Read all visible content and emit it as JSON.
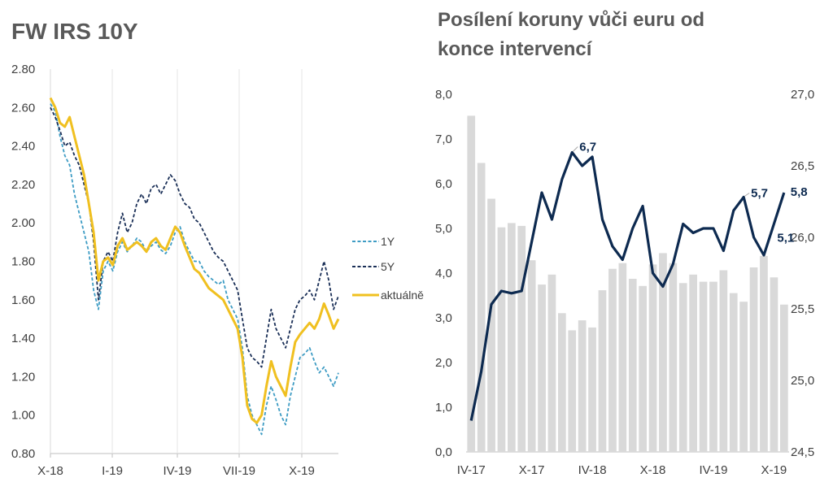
{
  "chart_data": [
    {
      "type": "line",
      "title": "FW IRS 10Y",
      "ylim": [
        0.8,
        2.8
      ],
      "ytick_labels": [
        "0.80",
        "1.00",
        "1.20",
        "1.40",
        "1.60",
        "1.80",
        "2.00",
        "2.20",
        "2.40",
        "2.60",
        "2.80"
      ],
      "x_tick_labels": [
        "X-18",
        "I-19",
        "IV-19",
        "VII-19",
        "X-19"
      ],
      "grid": "vertical-lines",
      "legend_position": "right",
      "series": [
        {
          "name": "1Y",
          "color": "#3e9cc4",
          "style": "dashed",
          "values": [
            2.62,
            2.58,
            2.45,
            2.35,
            2.3,
            2.15,
            2.05,
            1.95,
            1.85,
            1.65,
            1.55,
            1.75,
            1.8,
            1.75,
            1.85,
            1.9,
            1.85,
            1.88,
            1.92,
            1.9,
            1.85,
            1.88,
            1.9,
            1.86,
            1.84,
            1.88,
            1.95,
            1.98,
            1.9,
            1.85,
            1.8,
            1.8,
            1.75,
            1.72,
            1.7,
            1.68,
            1.7,
            1.6,
            1.55,
            1.5,
            1.35,
            1.1,
            1.0,
            0.95,
            0.9,
            1.05,
            1.15,
            1.08,
            1.0,
            0.95,
            1.1,
            1.2,
            1.3,
            1.32,
            1.35,
            1.28,
            1.22,
            1.25,
            1.2,
            1.15,
            1.22
          ]
        },
        {
          "name": "5Y",
          "color": "#1a2f57",
          "style": "dashed",
          "values": [
            2.6,
            2.55,
            2.48,
            2.4,
            2.42,
            2.35,
            2.3,
            2.2,
            2.1,
            1.9,
            1.6,
            1.8,
            1.85,
            1.8,
            1.95,
            2.05,
            1.95,
            2.0,
            2.1,
            2.15,
            2.1,
            2.18,
            2.2,
            2.15,
            2.2,
            2.25,
            2.22,
            2.15,
            2.1,
            2.08,
            2.02,
            2.0,
            1.95,
            1.9,
            1.85,
            1.82,
            1.8,
            1.75,
            1.7,
            1.65,
            1.5,
            1.35,
            1.3,
            1.28,
            1.25,
            1.4,
            1.55,
            1.45,
            1.4,
            1.35,
            1.45,
            1.55,
            1.6,
            1.62,
            1.65,
            1.6,
            1.7,
            1.8,
            1.7,
            1.55,
            1.62
          ]
        },
        {
          "name": "aktuálně",
          "color": "#f0c020",
          "style": "solid",
          "values": [
            2.65,
            2.6,
            2.52,
            2.5,
            2.55,
            2.45,
            2.35,
            2.25,
            2.1,
            1.95,
            1.7,
            1.8,
            1.82,
            1.78,
            1.88,
            1.92,
            1.86,
            1.88,
            1.9,
            1.88,
            1.85,
            1.9,
            1.92,
            1.88,
            1.86,
            1.92,
            1.98,
            1.95,
            1.88,
            1.82,
            1.76,
            1.74,
            1.7,
            1.66,
            1.64,
            1.62,
            1.6,
            1.55,
            1.5,
            1.45,
            1.3,
            1.05,
            0.98,
            0.96,
            1.0,
            1.15,
            1.28,
            1.2,
            1.15,
            1.1,
            1.25,
            1.38,
            1.42,
            1.45,
            1.48,
            1.45,
            1.5,
            1.58,
            1.52,
            1.45,
            1.5
          ]
        }
      ]
    },
    {
      "type": "bar+line",
      "title": "Posílení koruny vůči euru od konce intervencí",
      "ylim_left": [
        0,
        8
      ],
      "ylim_right": [
        24.5,
        27.0
      ],
      "ytick_labels_left": [
        "0,0",
        "1,0",
        "2,0",
        "3,0",
        "4,0",
        "5,0",
        "6,0",
        "7,0",
        "8,0"
      ],
      "ytick_labels_right": [
        "24,5",
        "25,0",
        "25,5",
        "26,0",
        "26,5",
        "27,0"
      ],
      "x_tick_labels": [
        "IV-17",
        "X-17",
        "IV-18",
        "X-18",
        "IV-19",
        "X-19"
      ],
      "bar_color": "#d9d9d9",
      "line_color": "#0d2a50",
      "bars_right_axis": [
        26.85,
        26.52,
        26.27,
        26.07,
        26.1,
        26.08,
        25.84,
        25.67,
        25.74,
        25.47,
        25.35,
        25.42,
        25.37,
        25.63,
        25.78,
        25.82,
        25.71,
        25.66,
        25.81,
        25.89,
        25.82,
        25.68,
        25.74,
        25.69,
        25.69,
        25.77,
        25.61,
        25.55,
        25.79,
        25.87,
        25.72,
        25.53
      ],
      "line_left_axis": [
        0.7,
        1.8,
        3.3,
        3.6,
        3.55,
        3.6,
        4.7,
        5.8,
        5.2,
        6.1,
        6.7,
        6.4,
        6.6,
        5.2,
        4.6,
        4.3,
        5.0,
        5.5,
        4.0,
        3.7,
        4.2,
        5.1,
        4.9,
        5.0,
        5.0,
        4.5,
        5.4,
        5.7,
        4.8,
        4.4,
        5.1,
        5.8
      ],
      "data_labels": [
        {
          "index": 10,
          "text": "6,7"
        },
        {
          "index": 27,
          "text": "5,7"
        },
        {
          "index": 30,
          "text": "5,1"
        },
        {
          "index": 31,
          "text": "5,8"
        }
      ]
    }
  ]
}
